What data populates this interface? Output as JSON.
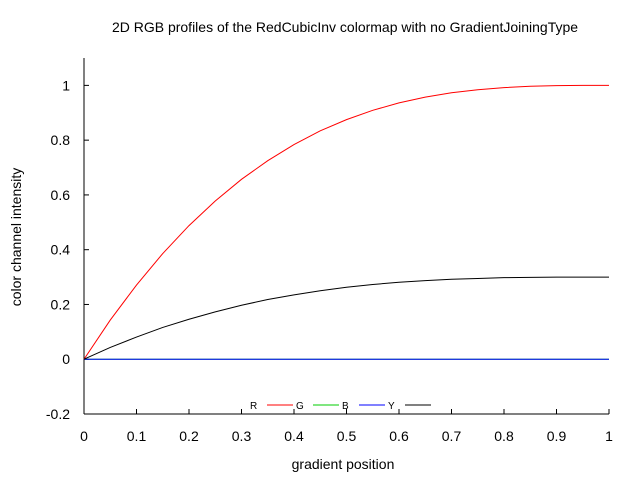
{
  "chart_data": {
    "type": "line",
    "title": "2D RGB profiles of the RedCubicInv colormap with no GradientJoiningType",
    "xlabel": "gradient position",
    "ylabel": "color channel intensity",
    "xlim": [
      0,
      1
    ],
    "ylim": [
      -0.2,
      1.1
    ],
    "x_ticks": [
      0,
      0.1,
      0.2,
      0.3,
      0.4,
      0.5,
      0.6,
      0.7,
      0.8,
      0.9,
      1
    ],
    "x_tick_labels": [
      "0",
      "0.1",
      "0.2",
      "0.3",
      "0.4",
      "0.5",
      "0.6",
      "0.7",
      "0.8",
      "0.9",
      "1"
    ],
    "y_ticks": [
      -0.2,
      0,
      0.2,
      0.4,
      0.6,
      0.8,
      1
    ],
    "y_tick_labels": [
      "-0.2",
      "0",
      "0.2",
      "0.4",
      "0.6",
      "0.8",
      "1"
    ],
    "grid": false,
    "legend_position": "bottom-center",
    "x": [
      0,
      0.05,
      0.1,
      0.15,
      0.2,
      0.25,
      0.3,
      0.35,
      0.4,
      0.45,
      0.5,
      0.55,
      0.6,
      0.65,
      0.7,
      0.75,
      0.8,
      0.85,
      0.9,
      0.95,
      1
    ],
    "series": [
      {
        "name": "R",
        "color": "#ff0000",
        "values": [
          0,
          0.143,
          0.271,
          0.386,
          0.488,
          0.578,
          0.657,
          0.725,
          0.784,
          0.834,
          0.875,
          0.909,
          0.936,
          0.957,
          0.973,
          0.984,
          0.992,
          0.997,
          0.999,
          1.0,
          1.0
        ]
      },
      {
        "name": "G",
        "color": "#00cc00",
        "values": [
          0,
          0,
          0,
          0,
          0,
          0,
          0,
          0,
          0,
          0,
          0,
          0,
          0,
          0,
          0,
          0,
          0,
          0,
          0,
          0,
          0
        ]
      },
      {
        "name": "B",
        "color": "#0000ff",
        "values": [
          0,
          0,
          0,
          0,
          0,
          0,
          0,
          0,
          0,
          0,
          0,
          0,
          0,
          0,
          0,
          0,
          0,
          0,
          0,
          0,
          0
        ]
      },
      {
        "name": "Y",
        "color": "#000000",
        "values": [
          0,
          0.043,
          0.081,
          0.116,
          0.146,
          0.173,
          0.197,
          0.218,
          0.235,
          0.25,
          0.263,
          0.273,
          0.281,
          0.287,
          0.292,
          0.295,
          0.298,
          0.299,
          0.3,
          0.3,
          0.3
        ]
      }
    ]
  }
}
